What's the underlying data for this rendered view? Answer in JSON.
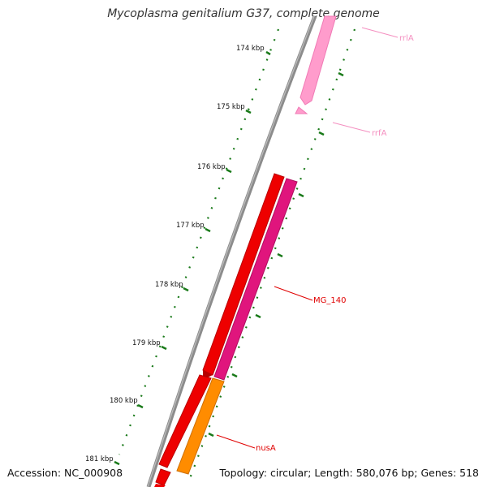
{
  "title": "Mycoplasma genitalium G37, complete genome",
  "accession_text": "Accession: NC_000908",
  "summary_text": "Topology: circular; Length: 580,076 bp; Genes: 518",
  "kbp_ticks": [
    {
      "label": "174 kbp"
    },
    {
      "label": "175 kbp"
    },
    {
      "label": "176 kbp"
    },
    {
      "label": "177 kbp"
    },
    {
      "label": "178 kbp"
    },
    {
      "label": "179 kbp"
    },
    {
      "label": "180 kbp"
    },
    {
      "label": "181 kbp"
    }
  ],
  "genes": [
    {
      "name": "rrlA",
      "color": "#f48fc0"
    },
    {
      "name": "rrfA",
      "color": "#f48fc0"
    },
    {
      "name": "MG_140",
      "color": "#e00000"
    },
    {
      "name": "nusA",
      "color": "#e00000"
    }
  ],
  "colors": {
    "backbone": "#8c8c8c",
    "tick": "#1a7a1a",
    "cds": "#ee0000",
    "cds_dark": "#b80000",
    "cds_magenta": "#e0157d",
    "cds_orange": "#ff8c00",
    "rna": "#ff9ccc"
  }
}
